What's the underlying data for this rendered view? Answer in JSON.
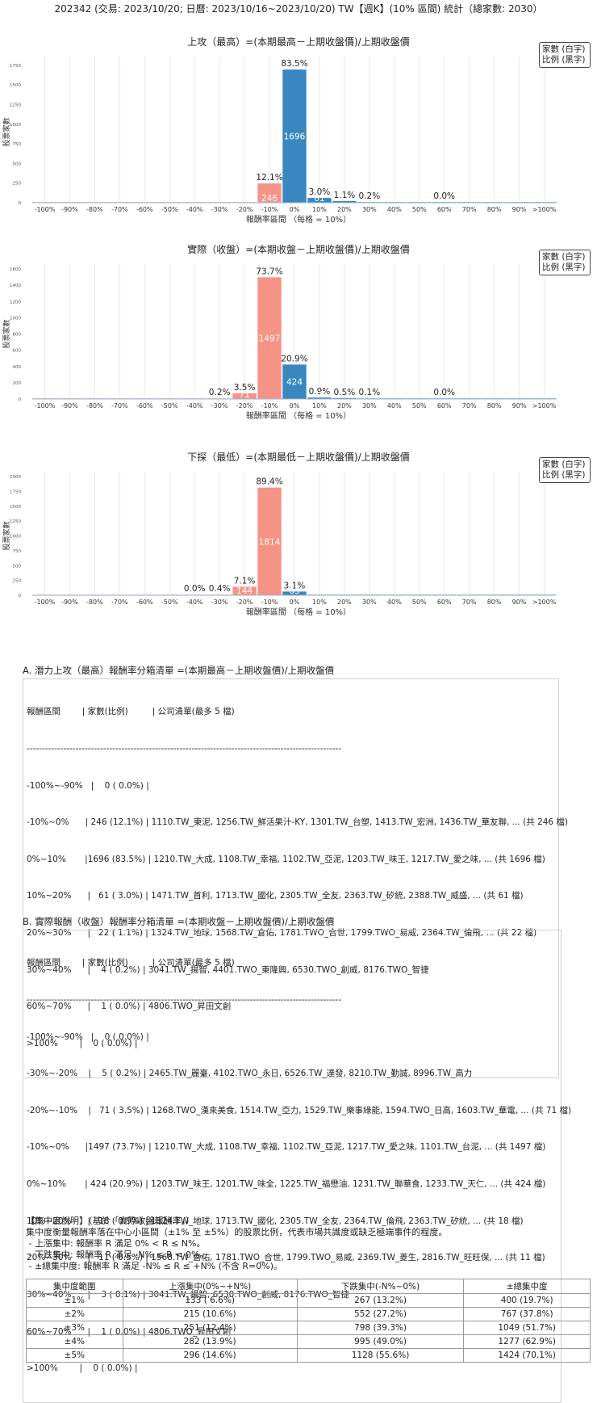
{
  "page": {
    "title": "202342 (交易: 2023/10/20; 日曆: 2023/10/16~2023/10/20) TW【週K】(10% 區間) 統計（總家數: 2030）"
  },
  "legend": {
    "line1": "家數 (白字)",
    "line2": "比例 (黑字)"
  },
  "colors": {
    "blue": "#3a86c0",
    "salmon": "#f59386",
    "grid": "#e5e5e5",
    "axis": "#9ab8d6"
  },
  "chart_data": [
    {
      "type": "bar",
      "title": "上攻（最高）=(本期最高－上期收盤價)/上期收盤價",
      "xlabel": "報酬率區間 （每格 = 10%）",
      "ylabel": "股票家數",
      "categories": [
        "-100%",
        "-90%",
        "-80%",
        "-70%",
        "-60%",
        "-50%",
        "-40%",
        "-30%",
        "-20%",
        "-10%",
        "0%",
        "10%",
        "20%",
        "30%",
        "40%",
        "50%",
        "60%",
        "70%",
        "80%",
        "90%",
        ">100%"
      ],
      "values": [
        0,
        0,
        0,
        0,
        0,
        0,
        0,
        0,
        0,
        246,
        1696,
        61,
        22,
        4,
        0,
        0,
        1,
        0,
        0,
        0,
        0
      ],
      "percents": [
        "",
        "",
        "",
        "",
        "",
        "",
        "",
        "",
        "",
        "12.1%",
        "83.5%",
        "3.0%",
        "1.1%",
        "0.2%",
        "",
        "",
        "0.0%",
        "",
        "",
        "",
        ""
      ],
      "counts": [
        "",
        "",
        "",
        "",
        "",
        "",
        "",
        "",
        "",
        "246",
        "1696",
        "61",
        "22",
        "",
        "",
        "",
        "",
        "",
        "",
        "",
        ""
      ],
      "bar_colors": [
        "salmon",
        "salmon",
        "salmon",
        "salmon",
        "salmon",
        "salmon",
        "salmon",
        "salmon",
        "salmon",
        "salmon",
        "blue",
        "blue",
        "blue",
        "blue",
        "blue",
        "blue",
        "blue",
        "blue",
        "blue",
        "blue",
        "blue"
      ],
      "yticks": [
        0,
        250,
        500,
        750,
        1000,
        1250,
        1500,
        1750
      ],
      "ylim": [
        0,
        1800
      ],
      "grid": true
    },
    {
      "type": "bar",
      "title": "實際（收盤）=(本期收盤－上期收盤價)/上期收盤價",
      "xlabel": "報酬率區間 （每格 = 10%）",
      "ylabel": "股票家數",
      "categories": [
        "-100%",
        "-90%",
        "-80%",
        "-70%",
        "-60%",
        "-50%",
        "-40%",
        "-30%",
        "-20%",
        "-10%",
        "0%",
        "10%",
        "20%",
        "30%",
        "40%",
        "50%",
        "60%",
        "70%",
        "80%",
        "90%",
        ">100%"
      ],
      "values": [
        0,
        0,
        0,
        0,
        0,
        0,
        0,
        5,
        71,
        1497,
        424,
        18,
        11,
        3,
        0,
        0,
        1,
        0,
        0,
        0,
        0
      ],
      "percents": [
        "",
        "",
        "",
        "",
        "",
        "",
        "",
        "0.2%",
        "3.5%",
        "73.7%",
        "20.9%",
        "0.9%",
        "0.5%",
        "0.1%",
        "",
        "",
        "0.0%",
        "",
        "",
        "",
        ""
      ],
      "counts": [
        "",
        "",
        "",
        "",
        "",
        "",
        "",
        "",
        "71",
        "1497",
        "424",
        "18",
        "11",
        "",
        "",
        "",
        "",
        "",
        "",
        "",
        ""
      ],
      "bar_colors": [
        "salmon",
        "salmon",
        "salmon",
        "salmon",
        "salmon",
        "salmon",
        "salmon",
        "salmon",
        "salmon",
        "salmon",
        "blue",
        "blue",
        "blue",
        "blue",
        "blue",
        "blue",
        "blue",
        "blue",
        "blue",
        "blue",
        "blue"
      ],
      "yticks": [
        0,
        200,
        400,
        600,
        800,
        1000,
        1200,
        1400,
        1600
      ],
      "ylim": [
        0,
        1600
      ],
      "grid": true
    },
    {
      "type": "bar",
      "title": "下探（最低）=(本期最低－上期收盤價)/上期收盤價",
      "xlabel": "報酬率區間 （每格 = 10%）",
      "ylabel": "股票家數",
      "categories": [
        "-100%",
        "-90%",
        "-80%",
        "-70%",
        "-60%",
        "-50%",
        "-40%",
        "-30%",
        "-20%",
        "-10%",
        "0%",
        "10%",
        "20%",
        "30%",
        "40%",
        "50%",
        "60%",
        "70%",
        "80%",
        "90%",
        ">100%"
      ],
      "values": [
        0,
        0,
        0,
        0,
        0,
        0,
        1,
        9,
        144,
        1814,
        63,
        0,
        0,
        0,
        0,
        0,
        0,
        0,
        0,
        0,
        0
      ],
      "percents": [
        "",
        "",
        "",
        "",
        "",
        "",
        "0.0%",
        "0.4%",
        "7.1%",
        "89.4%",
        "3.1%",
        "",
        "",
        "",
        "",
        "",
        "",
        "",
        "",
        "",
        ""
      ],
      "counts": [
        "",
        "",
        "",
        "",
        "",
        "",
        "",
        "",
        "144",
        "1814",
        "63",
        "",
        "",
        "",
        "",
        "",
        "",
        "",
        "",
        "",
        ""
      ],
      "bar_colors": [
        "salmon",
        "salmon",
        "salmon",
        "salmon",
        "salmon",
        "salmon",
        "salmon",
        "salmon",
        "salmon",
        "salmon",
        "blue",
        "blue",
        "blue",
        "blue",
        "blue",
        "blue",
        "blue",
        "blue",
        "blue",
        "blue",
        "blue"
      ],
      "yticks": [
        0,
        250,
        500,
        750,
        1000,
        1250,
        1500,
        1750,
        2000
      ],
      "ylim": [
        0,
        2000
      ],
      "grid": true
    }
  ],
  "listing_a": {
    "heading": "A. 潛力上攻（最高）報酬率分箱清單 =(本期最高－上期收盤價)/上期收盤價",
    "lines": [
      "報酬區間        | 家數(比例)         | 公司清單(最多 5 檔)",
      "-------------------------------------------------------------------------------------------------------",
      "-100%~-90%   |    0 ( 0.0%) |",
      "-10%~0%      | 246 (12.1%) | 1110.TW_東泥, 1256.TW_鮮活果汁-KY, 1301.TW_台塑, 1413.TW_宏洲, 1436.TW_華友聯, ... (共 246 檔)",
      "0%~10%       |1696 (83.5%) | 1210.TW_大成, 1108.TW_幸福, 1102.TW_亞泥, 1203.TW_味王, 1217.TW_愛之味, ... (共 1696 檔)",
      "10%~20%      |   61 ( 3.0%) | 1471.TW_首利, 1713.TW_國化, 2305.TW_全友, 2363.TW_矽統, 2388.TW_威盛, ... (共 61 檔)",
      "20%~30%      |   22 ( 1.1%) | 1324.TW_地球, 1568.TW_倉佑, 1781.TWO_合世, 1799.TWO_易威, 2364.TW_倫飛, ... (共 22 檔)",
      "30%~40%      |    4 ( 0.2%) | 3041.TW_揚智, 4401.TWO_東隆興, 6530.TWO_創威, 8176.TWO_智捷",
      "60%~70%      |    1 ( 0.0%) | 4806.TWO_昇田文創",
      ">100%        |    0 ( 0.0%) |"
    ]
  },
  "listing_b": {
    "heading": "B. 實際報酬（收盤）報酬率分箱清單 =(本期收盤－上期收盤價)/上期收盤價",
    "lines": [
      "報酬區間        | 家數(比例)         | 公司清單(最多 5 檔)",
      "-------------------------------------------------------------------------------------------------------",
      "-100%~-90%   |    0 ( 0.0%) |",
      "-30%~-20%    |    5 ( 0.2%) | 2465.TW_麗臺, 4102.TWO_永日, 6526.TW_達發, 8210.TW_勤誠, 8996.TW_高力",
      "-20%~-10%    |   71 ( 3.5%) | 1268.TWO_漢來美食, 1514.TW_亞力, 1529.TW_樂事綠能, 1594.TWO_日高, 1603.TW_華電, ... (共 71 檔)",
      "-10%~0%      |1497 (73.7%) | 1210.TW_大成, 1108.TW_幸福, 1102.TW_亞泥, 1217.TW_愛之味, 1101.TW_台泥, ... (共 1497 檔)",
      "0%~10%       | 424 (20.9%) | 1203.TW_味王, 1201.TW_味全, 1225.TW_福懋油, 1231.TW_聯華食, 1233.TW_天仁, ... (共 424 檔)",
      "10%~20%      |   18 ( 0.9%) | 1324.TW_地球, 1713.TW_國化, 2305.TW_全友, 2364.TW_倫飛, 2363.TW_矽統, ... (共 18 檔)",
      "20%~30%      |   11 ( 0.5%) | 1568.TW_倉佑, 1781.TWO_合世, 1799.TWO_易威, 2369.TW_菱生, 2816.TW_旺旺保, ... (共 11 檔)",
      "30%~40%      |    3 ( 0.1%) | 3041.TW_揚智, 6530.TWO_創威, 8176.TWO_智捷",
      "60%~70%      |    1 ( 0.0%) | 4806.TWO_昇田文創",
      ">100%        |    0 ( 0.0%) |"
    ]
  },
  "concentration": {
    "lines": [
      "【集中度說明】（基於「實際收盤報酬率」）",
      "集中度衡量報酬率落在中心小區間（±1% 至 ±5%）的股票比例，代表市場共識度或缺乏極端事件的程度。",
      " - 上漲集中: 報酬率 R 滿足 0% < R ≤ N%。",
      " - 下跌集中: 報酬率 R 滿足 -N% ≤ R < 0%。",
      " - ±總集中度: 報酬率 R 滿足 -N% ≤ R ≤ +N% (不含 R=0%)。"
    ],
    "headers": [
      "集中度範圍",
      "上漲集中(0%~+N%)",
      "下跌集中(-N%~0%)",
      "±總集中度"
    ],
    "rows": [
      [
        "±1%",
        "133 ( 6.6%)",
        "267 (13.2%)",
        "400 (19.7%)"
      ],
      [
        "±2%",
        "215 (10.6%)",
        "552 (27.2%)",
        "767 (37.8%)"
      ],
      [
        "±3%",
        "251 (12.4%)",
        "798 (39.3%)",
        "1049 (51.7%)"
      ],
      [
        "±4%",
        "282 (13.9%)",
        "995 (49.0%)",
        "1277 (62.9%)"
      ],
      [
        "±5%",
        "296 (14.6%)",
        "1128 (55.6%)",
        "1424 (70.1%)"
      ]
    ]
  }
}
